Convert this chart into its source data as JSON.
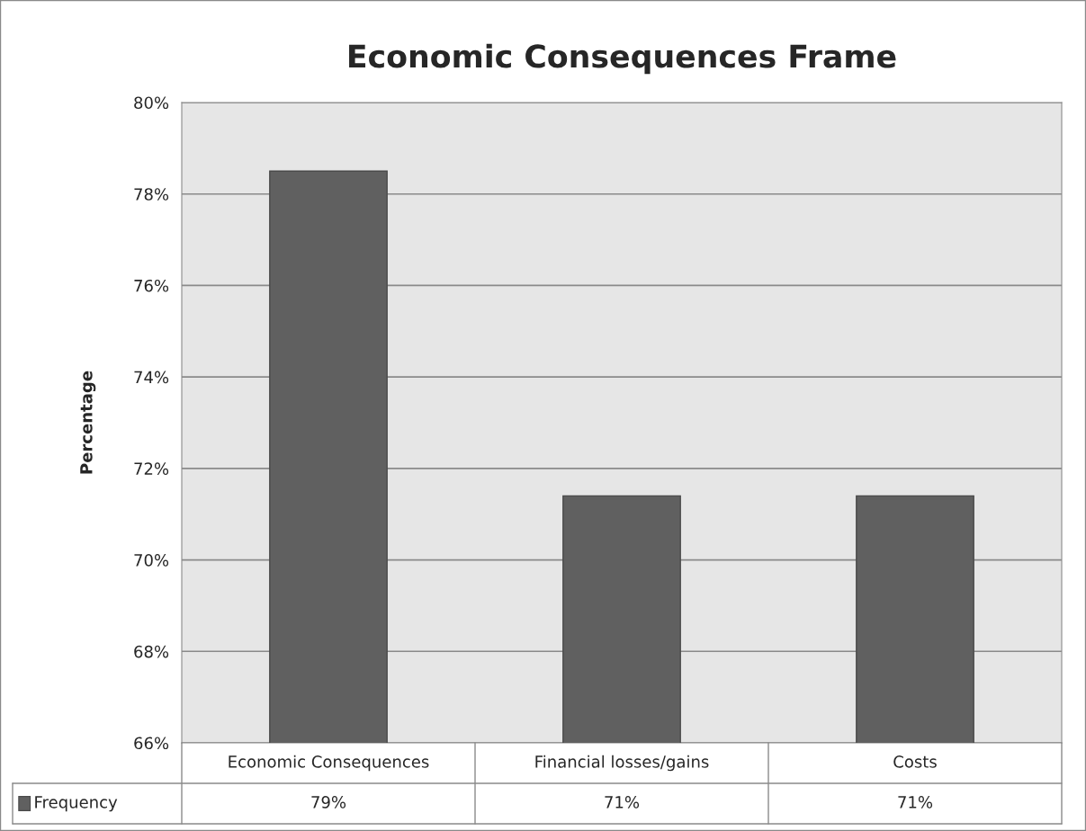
{
  "chart_data": {
    "type": "bar",
    "title": "Economic Consequences Frame",
    "ylabel": "Percentage",
    "categories": [
      "Economic Consequences",
      "Financial losses/gains",
      "Costs"
    ],
    "series": [
      {
        "name": "Frequency",
        "color": "#606060",
        "values": [
          78.5,
          71.4,
          71.4
        ],
        "value_labels": [
          "79%",
          "71%",
          "71%"
        ]
      }
    ],
    "ylim": [
      66,
      80
    ],
    "yticks": [
      {
        "value": 66,
        "label": "66%"
      },
      {
        "value": 68,
        "label": "68%"
      },
      {
        "value": 70,
        "label": "70%"
      },
      {
        "value": 72,
        "label": "72%"
      },
      {
        "value": 74,
        "label": "74%"
      },
      {
        "value": 76,
        "label": "76%"
      },
      {
        "value": 78,
        "label": "78%"
      },
      {
        "value": 80,
        "label": "80%"
      }
    ],
    "grid": "y",
    "legend": "bottom"
  }
}
